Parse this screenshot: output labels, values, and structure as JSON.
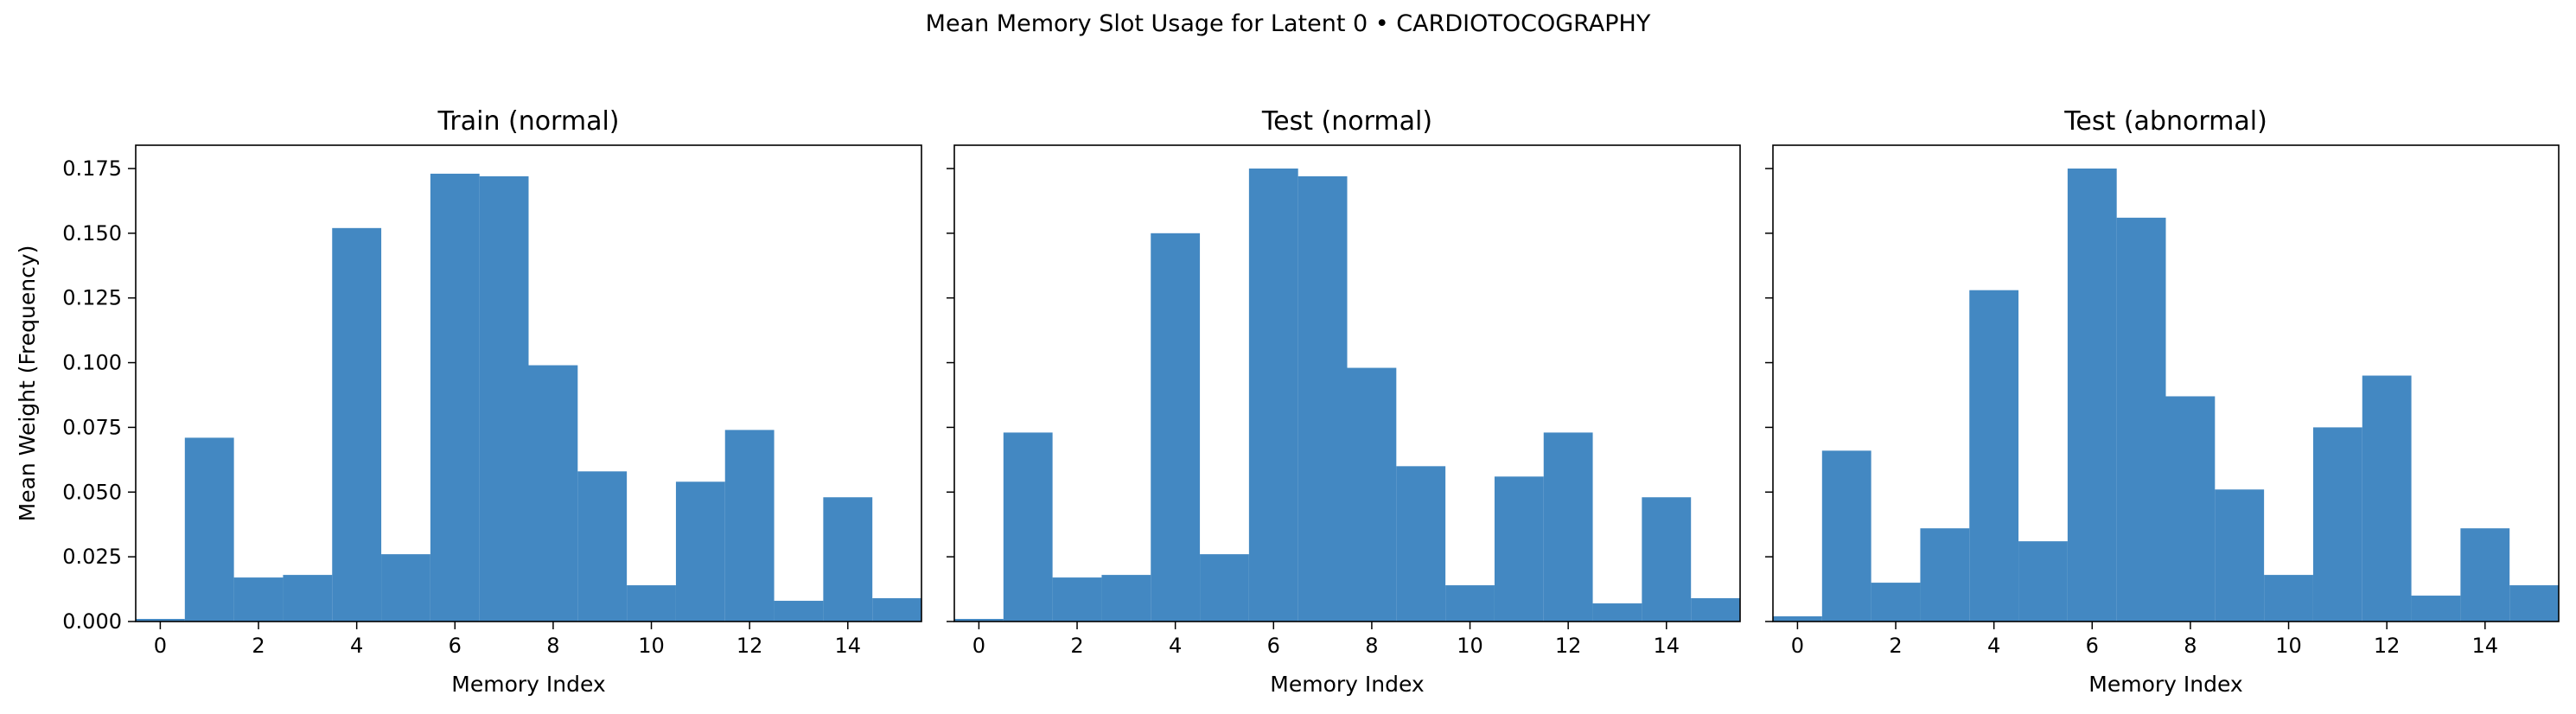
{
  "suptitle": "Mean Memory Slot Usage for Latent 0 • CARDIOTOCOGRAPHY",
  "colors": {
    "bar": "#2f7bbb"
  },
  "chart_data": [
    {
      "type": "bar",
      "title": "Train (normal)",
      "xlabel": "Memory Index",
      "ylabel": "Mean Weight (Frequency)",
      "x": [
        0,
        1,
        2,
        3,
        4,
        5,
        6,
        7,
        8,
        9,
        10,
        11,
        12,
        13,
        14,
        15
      ],
      "values": [
        0.001,
        0.071,
        0.017,
        0.018,
        0.152,
        0.026,
        0.173,
        0.172,
        0.099,
        0.058,
        0.014,
        0.054,
        0.074,
        0.008,
        0.048,
        0.009
      ],
      "xlim": [
        -0.5,
        15.5
      ],
      "ylim": [
        0,
        0.184
      ],
      "xticks": [
        "0",
        "2",
        "4",
        "6",
        "8",
        "10",
        "12",
        "14"
      ],
      "yticks": [
        "0.000",
        "0.025",
        "0.050",
        "0.075",
        "0.100",
        "0.125",
        "0.150",
        "0.175"
      ]
    },
    {
      "type": "bar",
      "title": "Test (normal)",
      "xlabel": "Memory Index",
      "ylabel": "",
      "x": [
        0,
        1,
        2,
        3,
        4,
        5,
        6,
        7,
        8,
        9,
        10,
        11,
        12,
        13,
        14,
        15
      ],
      "values": [
        0.001,
        0.073,
        0.017,
        0.018,
        0.15,
        0.026,
        0.175,
        0.172,
        0.098,
        0.06,
        0.014,
        0.056,
        0.073,
        0.007,
        0.048,
        0.009
      ],
      "xlim": [
        -0.5,
        15.5
      ],
      "ylim": [
        0,
        0.184
      ],
      "xticks": [
        "0",
        "2",
        "4",
        "6",
        "8",
        "10",
        "12",
        "14"
      ],
      "yticks": []
    },
    {
      "type": "bar",
      "title": "Test (abnormal)",
      "xlabel": "Memory Index",
      "ylabel": "",
      "x": [
        0,
        1,
        2,
        3,
        4,
        5,
        6,
        7,
        8,
        9,
        10,
        11,
        12,
        13,
        14,
        15
      ],
      "values": [
        0.002,
        0.066,
        0.015,
        0.036,
        0.128,
        0.031,
        0.175,
        0.156,
        0.087,
        0.051,
        0.018,
        0.075,
        0.095,
        0.01,
        0.036,
        0.014
      ],
      "xlim": [
        -0.5,
        15.5
      ],
      "ylim": [
        0,
        0.184
      ],
      "xticks": [
        "0",
        "2",
        "4",
        "6",
        "8",
        "10",
        "12",
        "14"
      ],
      "yticks": []
    }
  ]
}
